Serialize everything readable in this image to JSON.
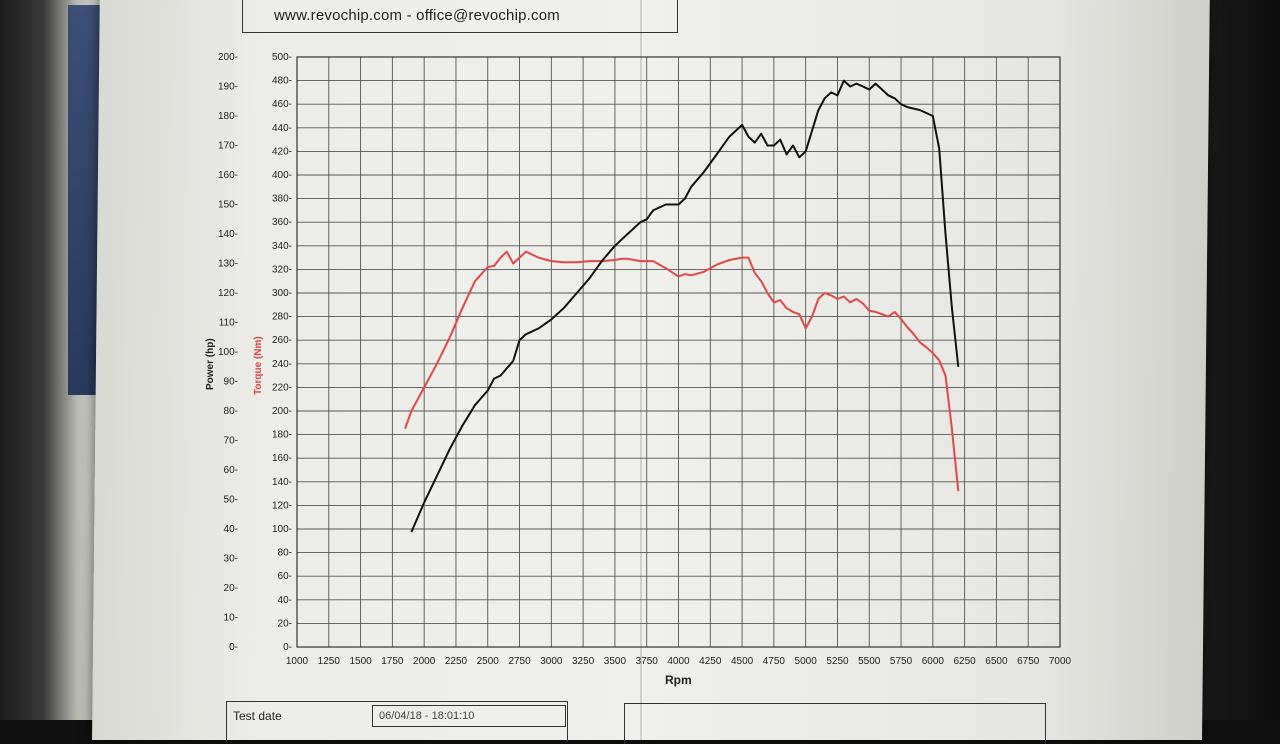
{
  "header": {
    "contact": "www.revochip.com - office@revochip.com"
  },
  "footer": {
    "test_date_label": "Test date",
    "test_date_value": "06/04/18 - 18:01:10"
  },
  "chart_data": {
    "type": "line",
    "title": "",
    "xlabel": "Rpm",
    "ylabel_left": "Power (hp)",
    "ylabel_right": "Torque (Nm)",
    "xlim": [
      1000,
      7000
    ],
    "ylim_power": [
      0,
      200
    ],
    "ylim_torque": [
      0,
      500
    ],
    "grid": true,
    "x_ticks": [
      "1000",
      "1250",
      "1500",
      "1750",
      "2000",
      "2250",
      "2500",
      "2750",
      "3000",
      "3250",
      "3500",
      "3750",
      "4000",
      "4250",
      "4500",
      "4750",
      "5000",
      "5250",
      "5500",
      "5750",
      "6000",
      "6250",
      "6500",
      "6750",
      "7000"
    ],
    "power_ticks": [
      "0-",
      "10-",
      "20-",
      "30-",
      "40-",
      "50-",
      "60-",
      "70-",
      "80-",
      "90-",
      "100-",
      "110-",
      "120-",
      "130-",
      "140-",
      "150-",
      "160-",
      "170-",
      "180-",
      "190-",
      "200-"
    ],
    "torque_ticks": [
      "0-",
      "20-",
      "40-",
      "60-",
      "80-",
      "100-",
      "120-",
      "140-",
      "160-",
      "180-",
      "200-",
      "220-",
      "240-",
      "260-",
      "280-",
      "300-",
      "320-",
      "340-",
      "360-",
      "380-",
      "400-",
      "420-",
      "440-",
      "460-",
      "480-",
      "500-"
    ],
    "series": [
      {
        "name": "Power (hp)",
        "axis": "power",
        "color": "#111111",
        "x": [
          1900,
          2000,
          2100,
          2200,
          2300,
          2400,
          2500,
          2550,
          2600,
          2700,
          2750,
          2800,
          2900,
          3000,
          3100,
          3200,
          3300,
          3400,
          3500,
          3600,
          3700,
          3750,
          3800,
          3900,
          4000,
          4050,
          4100,
          4200,
          4300,
          4400,
          4500,
          4550,
          4600,
          4650,
          4700,
          4750,
          4800,
          4850,
          4900,
          4950,
          5000,
          5050,
          5100,
          5150,
          5200,
          5250,
          5300,
          5350,
          5400,
          5450,
          5500,
          5550,
          5600,
          5650,
          5700,
          5750,
          5800,
          5900,
          6000,
          6050,
          6100,
          6150,
          6200
        ],
        "values": [
          39,
          49,
          58,
          67,
          75,
          82,
          87,
          91,
          92,
          97,
          104,
          106,
          108,
          111,
          115,
          120,
          125,
          131,
          136,
          140,
          144,
          145,
          148,
          150,
          150,
          152,
          156,
          161,
          167,
          173,
          177,
          173,
          171,
          174,
          170,
          170,
          172,
          167,
          170,
          166,
          168,
          175,
          182,
          186,
          188,
          187,
          192,
          190,
          191,
          190,
          189,
          191,
          189,
          187,
          186,
          184,
          183,
          182,
          180,
          169,
          140,
          115,
          95
        ]
      },
      {
        "name": "Torque (Nm)",
        "axis": "torque",
        "color": "#e0484a",
        "x": [
          1850,
          1900,
          2000,
          2100,
          2200,
          2300,
          2400,
          2500,
          2550,
          2600,
          2650,
          2700,
          2750,
          2800,
          2900,
          3000,
          3100,
          3200,
          3300,
          3400,
          3500,
          3550,
          3600,
          3700,
          3800,
          3900,
          4000,
          4050,
          4100,
          4200,
          4300,
          4400,
          4500,
          4550,
          4600,
          4650,
          4700,
          4750,
          4800,
          4850,
          4900,
          4950,
          5000,
          5050,
          5100,
          5150,
          5200,
          5250,
          5300,
          5350,
          5400,
          5450,
          5500,
          5550,
          5600,
          5650,
          5700,
          5750,
          5800,
          5850,
          5900,
          5950,
          6000,
          6050,
          6100,
          6150,
          6200
        ],
        "values": [
          185,
          200,
          220,
          240,
          262,
          287,
          310,
          322,
          323,
          330,
          335,
          325,
          330,
          335,
          330,
          327,
          326,
          326,
          327,
          327,
          328,
          329,
          329,
          327,
          327,
          321,
          314,
          316,
          315,
          318,
          324,
          328,
          330,
          330,
          317,
          310,
          300,
          292,
          294,
          287,
          284,
          282,
          270,
          280,
          295,
          300,
          298,
          295,
          297,
          292,
          295,
          291,
          285,
          284,
          282,
          280,
          284,
          278,
          271,
          265,
          258,
          254,
          249,
          243,
          230,
          185,
          132
        ]
      }
    ]
  }
}
